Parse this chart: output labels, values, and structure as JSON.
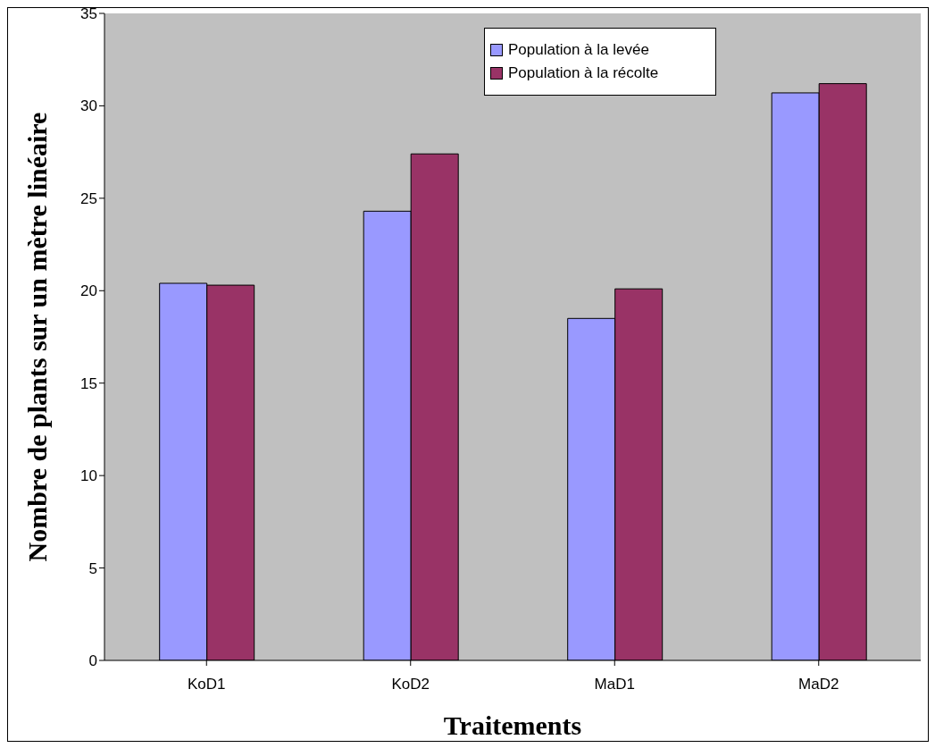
{
  "chart_data": {
    "type": "bar",
    "xlabel": "Traitements",
    "ylabel": "Nombre de plants sur un mètre linéaire",
    "categories": [
      "KoD1",
      "KoD2",
      "MaD1",
      "MaD2"
    ],
    "series": [
      {
        "name": "Population à la levée",
        "color": "#9999ff",
        "values": [
          20.4,
          24.3,
          18.5,
          30.7
        ]
      },
      {
        "name": "Population à la récolte",
        "color": "#993366",
        "values": [
          20.3,
          27.4,
          20.1,
          31.2
        ]
      }
    ],
    "ylim": [
      0,
      35
    ],
    "yticks": [
      0,
      5,
      10,
      15,
      20,
      25,
      30,
      35
    ],
    "grid": false,
    "legend": "top right"
  }
}
